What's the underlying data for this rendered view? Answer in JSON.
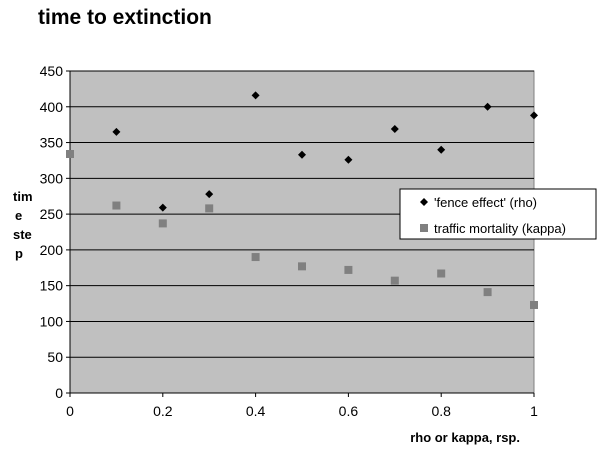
{
  "chart_data": {
    "type": "scatter",
    "title": "time to extinction",
    "xlabel": "rho or kappa, rsp.",
    "ylabel": [
      "tim",
      "e",
      "ste",
      "p"
    ],
    "xlim": [
      0,
      1
    ],
    "ylim": [
      0,
      450
    ],
    "x_ticks": [
      "0",
      "0.2",
      "0.4",
      "0.6",
      "0.8",
      "1"
    ],
    "y_ticks": [
      "0",
      "50",
      "100",
      "150",
      "200",
      "250",
      "300",
      "350",
      "400",
      "450"
    ],
    "grid": "horizontal",
    "legend_position": "right",
    "series": [
      {
        "name": "'fence effect' (rho)",
        "marker": "diamond",
        "color": "#000000",
        "x": [
          0.1,
          0.2,
          0.3,
          0.4,
          0.5,
          0.6,
          0.7,
          0.8,
          0.9,
          1.0
        ],
        "y": [
          365,
          259,
          278,
          416,
          333,
          326,
          369,
          340,
          400,
          388
        ]
      },
      {
        "name": "traffic mortality (kappa)",
        "marker": "square",
        "color": "#808080",
        "x": [
          0,
          0.1,
          0.2,
          0.3,
          0.4,
          0.5,
          0.6,
          0.7,
          0.8,
          0.9,
          1.0
        ],
        "y": [
          334,
          262,
          237,
          258,
          190,
          177,
          172,
          157,
          167,
          141,
          123
        ]
      }
    ]
  }
}
